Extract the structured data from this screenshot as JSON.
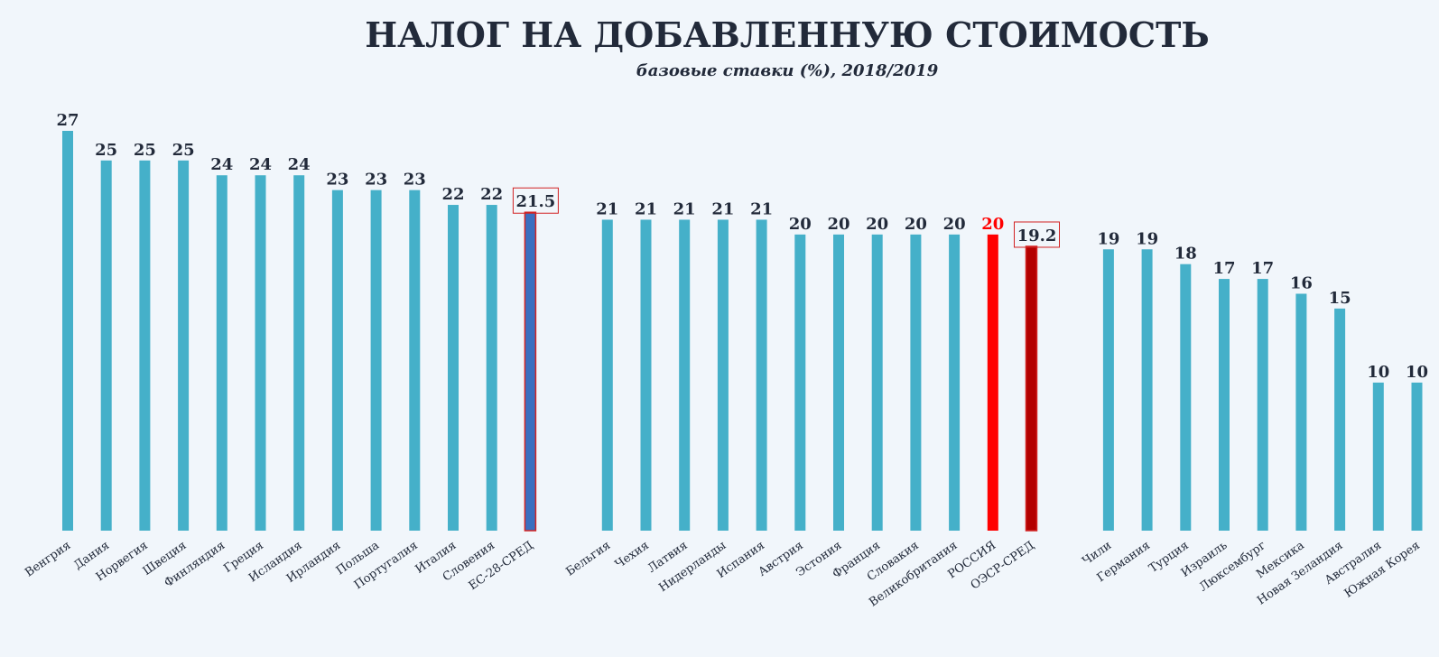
{
  "chart_data": {
    "type": "bar",
    "title": "НАЛОГ НА ДОБАВЛЕННУЮ СТОИМОСТЬ",
    "subtitle": "базовые ставки (%), 2018/2019",
    "categories": [
      "Венгрия",
      "Дания",
      "Норвегия",
      "Швеция",
      "Финляндия",
      "Греция",
      "Исландия",
      "Ирландия",
      "Польша",
      "Португалия",
      "Италия",
      "Словения",
      "ЕС-28-СРЕД",
      "Бельгия",
      "Чехия",
      "Латвия",
      "Нидерланды",
      "Испания",
      "Австрия",
      "Эстония",
      "Франция",
      "Словакия",
      "Великобритания",
      "РОССИЯ",
      "ОЭСР-СРЕД",
      "Чили",
      "Германия",
      "Турция",
      "Израиль",
      "Люксембург",
      "Мексика",
      "Новая Зеландия",
      "Австралия",
      "Южная Корея"
    ],
    "values": [
      27,
      25,
      25,
      25,
      24,
      24,
      24,
      23,
      23,
      23,
      22,
      22,
      21.5,
      21,
      21,
      21,
      21,
      21,
      20,
      20,
      20,
      20,
      20,
      20,
      19.2,
      19,
      19,
      18,
      17,
      17,
      16,
      15,
      10,
      10
    ],
    "colors": [
      "#45b0c9",
      "#45b0c9",
      "#45b0c9",
      "#45b0c9",
      "#45b0c9",
      "#45b0c9",
      "#45b0c9",
      "#45b0c9",
      "#45b0c9",
      "#45b0c9",
      "#45b0c9",
      "#45b0c9",
      "#3a6fc0",
      "#45b0c9",
      "#45b0c9",
      "#45b0c9",
      "#45b0c9",
      "#45b0c9",
      "#45b0c9",
      "#45b0c9",
      "#45b0c9",
      "#45b0c9",
      "#45b0c9",
      "#ff0000",
      "#b30000",
      "#45b0c9",
      "#45b0c9",
      "#45b0c9",
      "#45b0c9",
      "#45b0c9",
      "#45b0c9",
      "#45b0c9",
      "#45b0c9",
      "#45b0c9"
    ],
    "label_color": "#222a3a",
    "highlight_label": {
      "index": 23,
      "color": "#ff0000"
    },
    "boxed_indices": [
      12,
      24
    ],
    "box_color": "#d22222",
    "ylim": [
      0,
      27
    ]
  }
}
